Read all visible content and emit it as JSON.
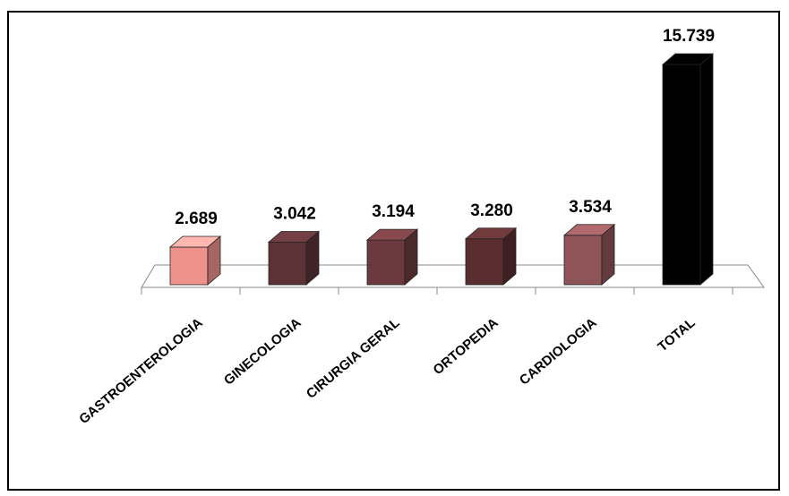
{
  "chart_data": {
    "type": "bar",
    "categories": [
      "GASTROENTEROLOGIA",
      "GINECOLOGIA",
      "CIRURGIA GERAL",
      "ORTOPEDIA",
      "CARDIOLOGIA",
      "TOTAL"
    ],
    "values": [
      2689,
      3042,
      3194,
      3280,
      3534,
      15739
    ],
    "data_labels": [
      "2.689",
      "3.042",
      "3.194",
      "3.280",
      "3.534",
      "15.739"
    ],
    "colors": [
      "#f0928c",
      "#5c3236",
      "#6c3a3e",
      "#5a2e30",
      "#8e5458",
      "#000000"
    ],
    "title": "",
    "xlabel": "",
    "ylabel": "",
    "ylim": [
      0,
      16500
    ],
    "grid": false,
    "legend": "none",
    "style": "3d-column"
  }
}
